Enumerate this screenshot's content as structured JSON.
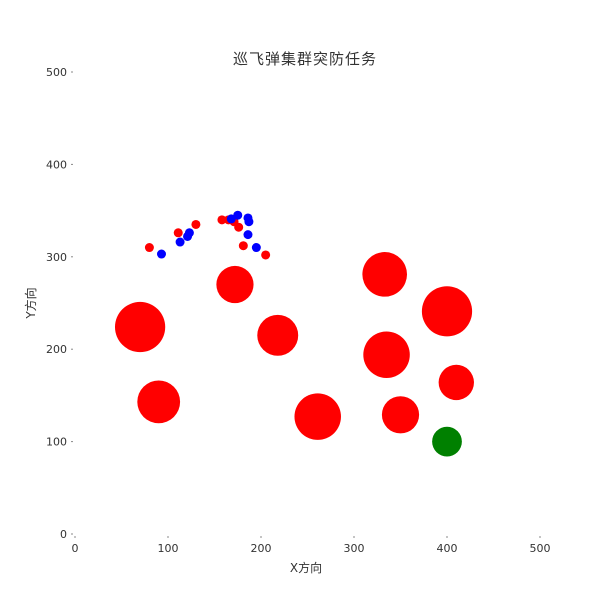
{
  "chart_data": {
    "type": "scatter",
    "title": "巡飞弹集群突防任务",
    "xlabel": "X方向",
    "ylabel": "Y方向",
    "xlim": [
      0,
      500
    ],
    "ylim": [
      0,
      500
    ],
    "xticks": [
      0,
      100,
      200,
      300,
      400,
      500
    ],
    "yticks": [
      0,
      100,
      200,
      300,
      400,
      500
    ],
    "grid": false,
    "series": [
      {
        "color": "#ff0000",
        "marker": "large-circle",
        "points": [
          {
            "x": 70,
            "y": 224,
            "r": 27
          },
          {
            "x": 90,
            "y": 143,
            "r": 23
          },
          {
            "x": 172,
            "y": 270,
            "r": 20
          },
          {
            "x": 218,
            "y": 215,
            "r": 22
          },
          {
            "x": 261,
            "y": 127,
            "r": 25
          },
          {
            "x": 333,
            "y": 281,
            "r": 24
          },
          {
            "x": 335,
            "y": 194,
            "r": 25
          },
          {
            "x": 350,
            "y": 129,
            "r": 20
          },
          {
            "x": 400,
            "y": 241,
            "r": 27
          },
          {
            "x": 410,
            "y": 164,
            "r": 19
          }
        ]
      },
      {
        "color": "#008000",
        "marker": "large-circle",
        "points": [
          {
            "x": 400,
            "y": 100,
            "r": 16
          }
        ]
      },
      {
        "color": "#ff0000",
        "marker": "small-dot",
        "points": [
          {
            "x": 80,
            "y": 310
          },
          {
            "x": 111,
            "y": 326
          },
          {
            "x": 130,
            "y": 335
          },
          {
            "x": 158,
            "y": 340
          },
          {
            "x": 165,
            "y": 340
          },
          {
            "x": 171,
            "y": 338
          },
          {
            "x": 176,
            "y": 332
          },
          {
            "x": 181,
            "y": 312
          },
          {
            "x": 205,
            "y": 302
          }
        ]
      },
      {
        "color": "#0000ff",
        "marker": "small-dot",
        "points": [
          {
            "x": 93,
            "y": 303
          },
          {
            "x": 113,
            "y": 316
          },
          {
            "x": 121,
            "y": 322
          },
          {
            "x": 123,
            "y": 326
          },
          {
            "x": 168,
            "y": 341
          },
          {
            "x": 175,
            "y": 345
          },
          {
            "x": 186,
            "y": 342
          },
          {
            "x": 187,
            "y": 338
          },
          {
            "x": 186,
            "y": 324
          },
          {
            "x": 195,
            "y": 310
          }
        ]
      }
    ]
  }
}
